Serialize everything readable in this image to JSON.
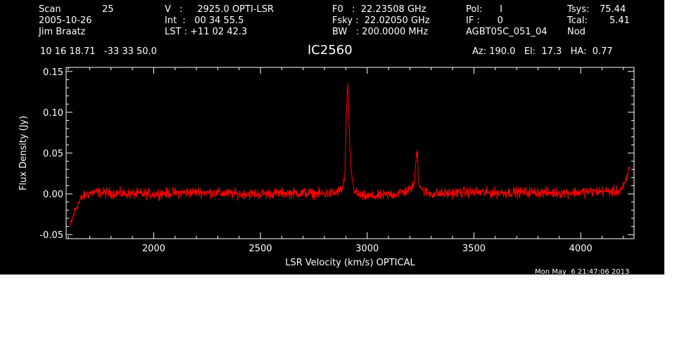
{
  "header": {
    "scan_label": "Scan",
    "scan_value": "25",
    "date": "2005-10-26",
    "observer": "Jim Braatz",
    "v_line": "V   :     2925.0 OPTI-LSR",
    "int_line": "Int  :   00 34 55.5",
    "lst_line": "LST : +11 02 42.3",
    "f0_line": "F0   :  22.23508 GHz",
    "fsky_line": "Fsky :  22.02050 GHz",
    "bw_line": "BW   : 200.0000 MHz",
    "pol_line": "Pol:      I",
    "if_line": "IF :      0",
    "project": "AGBT05C_051_04",
    "tsys_label": "Tsys:",
    "tsys_value": "75.44",
    "tcal_label": "Tcal:",
    "tcal_value": "5.41",
    "mode": "Nod",
    "coords": "10 16 18.71   -33 33 50.0",
    "source": "IC2560",
    "azelha": "Az: 190.0   El:  17.3   HA:  0.77",
    "timestamp": "Mon May  6 21:47:06 2013"
  },
  "chart_data": {
    "type": "line",
    "title": "IC2560",
    "xlabel": "LSR Velocity (km/s) OPTICAL",
    "ylabel": "Flux Density (Jy)",
    "xlim": [
      1590,
      4250
    ],
    "ylim": [
      -0.055,
      0.155
    ],
    "xticks": [
      2000,
      2500,
      3000,
      3500,
      4000
    ],
    "yticks": [
      -0.05,
      0.0,
      0.05,
      0.1,
      0.15
    ],
    "ytick_labels": [
      "-0.05",
      "0.00",
      "0.05",
      "0.10",
      "0.15"
    ],
    "series": [
      {
        "color": "#ff0000",
        "x": [
          1610,
          1625,
          1640,
          1655,
          1670,
          1690,
          1720,
          1800,
          1900,
          2000,
          2100,
          2200,
          2300,
          2400,
          2500,
          2600,
          2700,
          2800,
          2850,
          2880,
          2895,
          2902,
          2906,
          2910,
          2913,
          2918,
          2925,
          2935,
          2950,
          2980,
          3050,
          3150,
          3200,
          3220,
          3230,
          3235,
          3240,
          3260,
          3300,
          3400,
          3500,
          3600,
          3700,
          3800,
          3900,
          4000,
          4100,
          4180,
          4200,
          4215,
          4225,
          4232
        ],
        "y": [
          -0.04,
          -0.025,
          -0.015,
          -0.008,
          -0.003,
          0.0,
          0.002,
          0.001,
          0.0,
          0.0,
          0.001,
          0.002,
          0.001,
          0.0,
          0.0,
          0.001,
          0.001,
          0.0,
          0.001,
          0.005,
          0.02,
          0.09,
          0.125,
          0.133,
          0.1,
          0.06,
          0.03,
          0.008,
          0.0,
          -0.003,
          -0.003,
          0.001,
          0.005,
          0.012,
          0.045,
          0.057,
          0.015,
          0.004,
          0.0,
          0.001,
          0.002,
          0.001,
          0.002,
          0.002,
          0.001,
          0.002,
          0.003,
          0.003,
          0.008,
          0.018,
          0.028,
          0.037
        ]
      }
    ]
  }
}
